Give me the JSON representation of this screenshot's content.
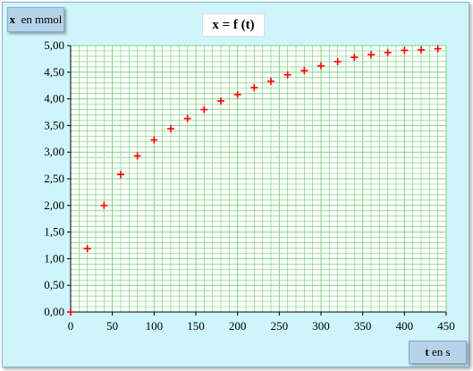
{
  "chart_data": {
    "type": "scatter",
    "title": "x =  f (t)",
    "ylabel": {
      "var": "x",
      "unit": "en mmol"
    },
    "xlabel": {
      "var": "t",
      "unit": "en s"
    },
    "xlim": [
      0,
      450
    ],
    "ylim": [
      0,
      5
    ],
    "x_ticks": [
      "0",
      "50",
      "100",
      "150",
      "200",
      "250",
      "300",
      "350",
      "400",
      "450"
    ],
    "y_ticks": [
      "0,00",
      "0,50",
      "1,00",
      "1,50",
      "2,00",
      "2,50",
      "3,00",
      "3,50",
      "4,00",
      "4,50",
      "5,00"
    ],
    "grid": true,
    "series": [
      {
        "x": [
          0,
          20,
          40,
          60,
          80,
          100,
          120,
          140,
          160,
          180,
          200,
          220,
          240,
          260,
          280,
          300,
          320,
          340,
          360,
          380,
          400,
          420,
          440
        ],
        "y": [
          0,
          1.19,
          2.0,
          2.58,
          2.93,
          3.23,
          3.44,
          3.63,
          3.8,
          3.96,
          4.08,
          4.21,
          4.33,
          4.45,
          4.53,
          4.62,
          4.7,
          4.78,
          4.83,
          4.87,
          4.91,
          4.92,
          4.94
        ]
      }
    ],
    "colors": {
      "background": "#cdf5fb",
      "grid": "#7fd47f",
      "marker": "#ff0000",
      "label_box": "#b7d3ea"
    }
  }
}
